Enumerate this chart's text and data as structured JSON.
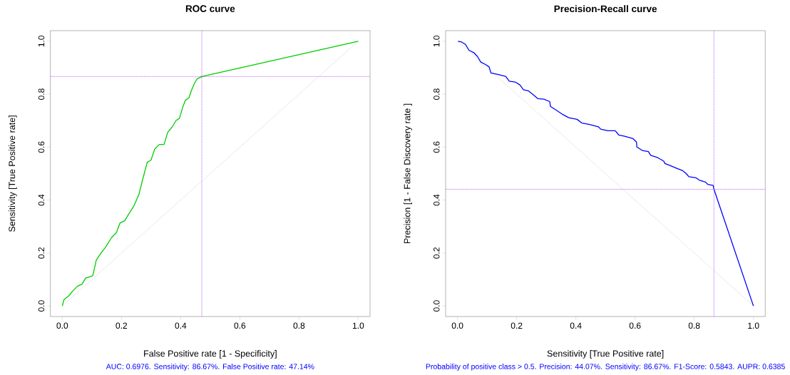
{
  "chart_data": [
    {
      "type": "line",
      "title": "ROC curve",
      "xlabel": "False Positive rate [1 - Specificity]",
      "ylabel": "Sensitivity [True Positive rate]",
      "annotations": [
        "AUC: 0.6976. Sensitivity: 86.67%. False Positive rate: 47.14%"
      ],
      "xlim": [
        -0.04,
        1.04
      ],
      "ylim": [
        -0.04,
        1.04
      ],
      "xticks": [
        {
          "value": 0,
          "label": "0.0"
        },
        {
          "value": 0.2,
          "label": "0.2"
        },
        {
          "value": 0.4,
          "label": "0.4"
        },
        {
          "value": 0.6,
          "label": "0.6"
        },
        {
          "value": 0.8,
          "label": "0.8"
        },
        {
          "value": 1,
          "label": "1.0"
        }
      ],
      "yticks": [
        {
          "value": 0,
          "label": "0.0"
        },
        {
          "value": 0.2,
          "label": "0.2"
        },
        {
          "value": 0.4,
          "label": "0.4"
        },
        {
          "value": 0.6,
          "label": "0.6"
        },
        {
          "value": 0.8,
          "label": "0.8"
        },
        {
          "value": 1,
          "label": "1.0"
        }
      ],
      "series": [
        {
          "color": "#d3d3d3",
          "x": [
            0,
            1
          ],
          "values": [
            0,
            1
          ]
        },
        {
          "color": "#00cd00",
          "x": [
            0,
            0.006,
            0.022,
            0.035,
            0.051,
            0.067,
            0.079,
            0.103,
            0.115,
            0.131,
            0.147,
            0.167,
            0.183,
            0.195,
            0.211,
            0.223,
            0.243,
            0.259,
            0.271,
            0.287,
            0.3,
            0.312,
            0.328,
            0.344,
            0.356,
            0.372,
            0.384,
            0.396,
            0.408,
            0.416,
            0.428,
            0.436,
            0.448,
            0.456,
            0.4714,
            1
          ],
          "values": [
            0,
            0.024,
            0.038,
            0.056,
            0.074,
            0.083,
            0.105,
            0.114,
            0.173,
            0.2,
            0.223,
            0.259,
            0.277,
            0.313,
            0.322,
            0.344,
            0.38,
            0.421,
            0.475,
            0.542,
            0.551,
            0.592,
            0.61,
            0.61,
            0.655,
            0.677,
            0.7,
            0.709,
            0.754,
            0.777,
            0.786,
            0.813,
            0.844,
            0.858,
            0.8667,
            1
          ]
        }
      ],
      "ref_lines": [
        {
          "axis": "x",
          "value": 0.4714,
          "color": "#a020f0",
          "line_style": "dotted"
        },
        {
          "axis": "y",
          "value": 0.8667,
          "color": "#a020f0",
          "line_style": "dotted"
        }
      ]
    },
    {
      "type": "line",
      "title": "Precision-Recall curve",
      "xlabel": "Sensitivity [True Positive rate]",
      "ylabel": "Precision [1 - False Discovery rate ]",
      "annotations": [
        "Probability of positive class > 0.5. Precision: 44.07%. Sensitivity: 86.67%. F1-Score: 0.5843. AUPR: 0.6385"
      ],
      "xlim": [
        -0.04,
        1.04
      ],
      "ylim": [
        -0.04,
        1.04
      ],
      "xticks": [
        {
          "value": 0,
          "label": "0.0"
        },
        {
          "value": 0.2,
          "label": "0.2"
        },
        {
          "value": 0.4,
          "label": "0.4"
        },
        {
          "value": 0.6,
          "label": "0.6"
        },
        {
          "value": 0.8,
          "label": "0.8"
        },
        {
          "value": 1,
          "label": "1.0"
        }
      ],
      "yticks": [
        {
          "value": 0,
          "label": "0.0"
        },
        {
          "value": 0.2,
          "label": "0.2"
        },
        {
          "value": 0.4,
          "label": "0.4"
        },
        {
          "value": 0.6,
          "label": "0.6"
        },
        {
          "value": 0.8,
          "label": "0.8"
        },
        {
          "value": 1,
          "label": "1.0"
        }
      ],
      "series": [
        {
          "color": "#d3d3d3",
          "x": [
            0,
            1
          ],
          "values": [
            1,
            0
          ]
        },
        {
          "color": "#0000ff",
          "x": [
            0.002,
            0.014,
            0.027,
            0.039,
            0.055,
            0.067,
            0.079,
            0.095,
            0.107,
            0.113,
            0.131,
            0.163,
            0.175,
            0.195,
            0.211,
            0.223,
            0.239,
            0.255,
            0.272,
            0.292,
            0.312,
            0.314,
            0.332,
            0.356,
            0.376,
            0.404,
            0.42,
            0.444,
            0.476,
            0.484,
            0.508,
            0.533,
            0.545,
            0.565,
            0.593,
            0.605,
            0.606,
            0.625,
            0.645,
            0.653,
            0.677,
            0.697,
            0.701,
            0.721,
            0.741,
            0.761,
            0.773,
            0.782,
            0.806,
            0.818,
            0.838,
            0.846,
            0.864,
            0.8667,
            1
          ],
          "values": [
            1,
            0.997,
            0.988,
            0.966,
            0.957,
            0.943,
            0.921,
            0.912,
            0.903,
            0.88,
            0.876,
            0.867,
            0.849,
            0.846,
            0.835,
            0.817,
            0.813,
            0.799,
            0.783,
            0.781,
            0.772,
            0.754,
            0.741,
            0.723,
            0.711,
            0.705,
            0.691,
            0.686,
            0.677,
            0.668,
            0.662,
            0.662,
            0.646,
            0.641,
            0.632,
            0.619,
            0.601,
            0.587,
            0.583,
            0.569,
            0.56,
            0.547,
            0.538,
            0.529,
            0.52,
            0.511,
            0.5,
            0.488,
            0.484,
            0.475,
            0.468,
            0.459,
            0.455,
            0.4407,
            0
          ]
        }
      ],
      "ref_lines": [
        {
          "axis": "x",
          "value": 0.8667,
          "color": "#a020f0",
          "line_style": "dotted"
        },
        {
          "axis": "y",
          "value": 0.4407,
          "color": "#a020f0",
          "line_style": "dotted"
        }
      ]
    }
  ]
}
